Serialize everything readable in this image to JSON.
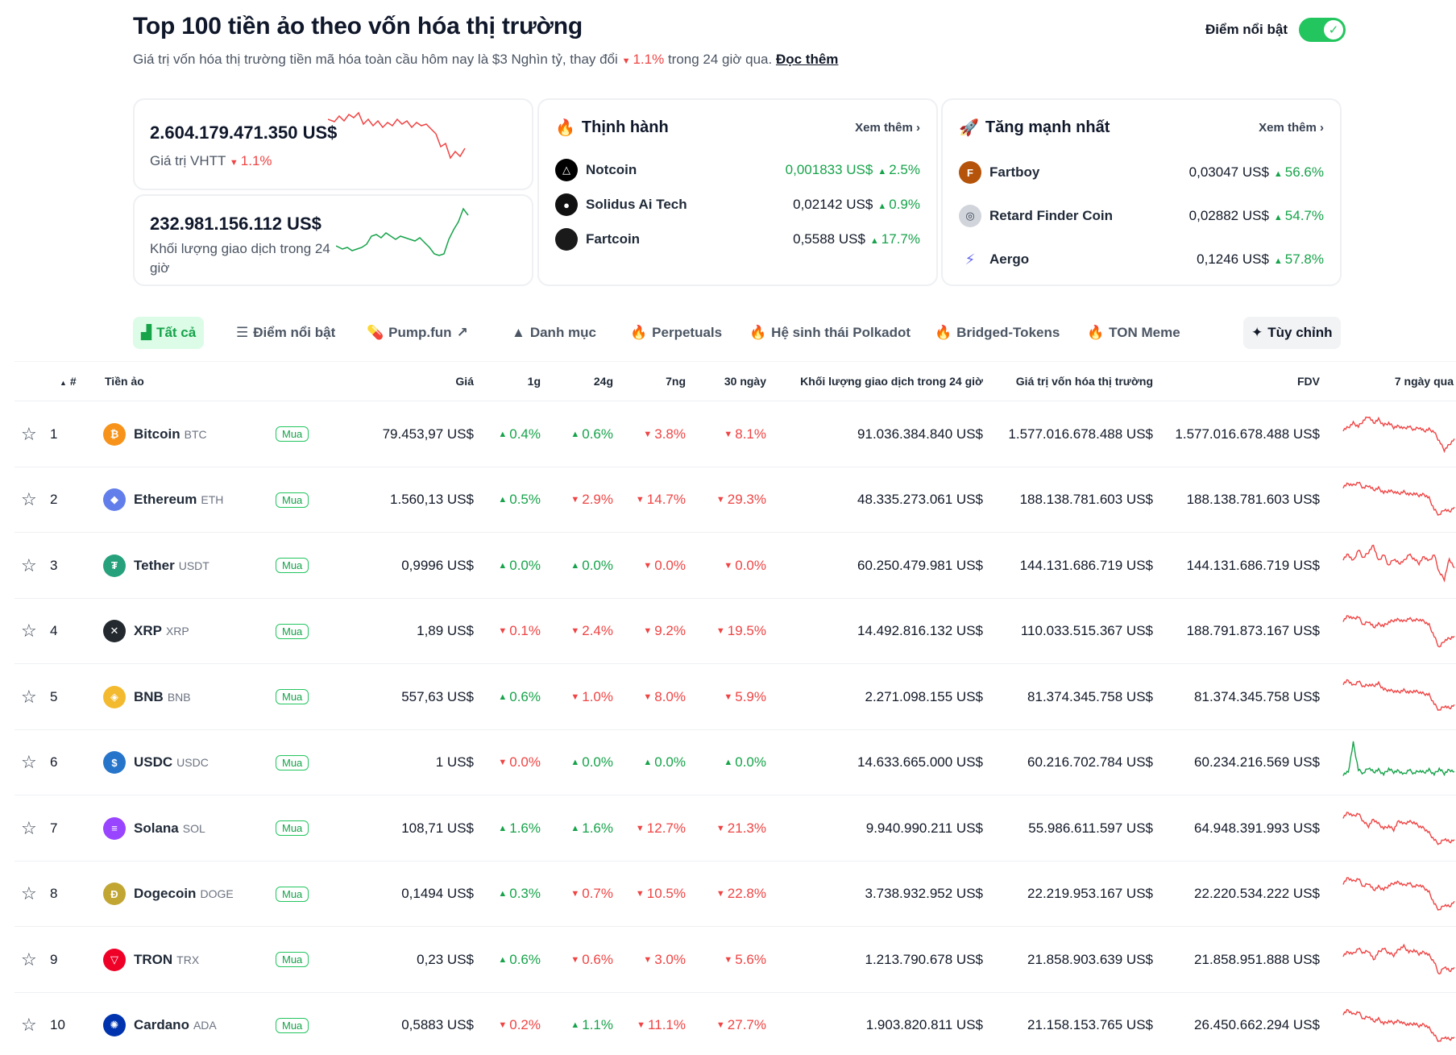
{
  "header": {
    "title": "Top 100 tiền ảo theo vốn hóa thị trường",
    "subtitle_prefix": "Giá trị vốn hóa thị trường tiền mã hóa toàn cầu hôm nay là $3 Nghìn tỷ, thay đổi",
    "subtitle_change": "1.1%",
    "subtitle_suffix": "trong 24 giờ qua.",
    "read_more": "Đọc thêm",
    "highlight_label": "Điểm nổi bật",
    "highlight_on": true
  },
  "stats": {
    "market_cap": {
      "value": "2.604.179.471.350 US$",
      "label": "Giá trị VHTT",
      "change": "1.1%",
      "trend": "down"
    },
    "volume": {
      "value": "232.981.156.112 US$",
      "label": "Khối lượng giao dịch trong 24 giờ",
      "trend": "up"
    }
  },
  "trending": {
    "title": "Thịnh hành",
    "see_more": "Xem thêm",
    "items": [
      {
        "name": "Notcoin",
        "price": "0,001833 US$",
        "change": "2.5%",
        "logo_color": "#000000",
        "icon": "triangle-icon"
      },
      {
        "name": "Solidus Ai Tech",
        "price": "0,02142 US$",
        "change": "0.9%",
        "logo_color": "#111111",
        "icon": "solidus-icon"
      },
      {
        "name": "Fartcoin",
        "price": "0,5588 US$",
        "change": "17.7%",
        "logo_color": "#1a1a1a",
        "icon": "fartcoin-icon"
      }
    ]
  },
  "gainers": {
    "title": "Tăng mạnh nhất",
    "see_more": "Xem thêm",
    "items": [
      {
        "name": "Fartboy",
        "price": "0,03047 US$",
        "change": "56.6%",
        "logo_color": "#b45309",
        "icon": "fartboy-icon"
      },
      {
        "name": "Retard Finder Coin",
        "price": "0,02882 US$",
        "change": "54.7%",
        "logo_color": "#9ca3af",
        "icon": "retard-finder-icon"
      },
      {
        "name": "Aergo",
        "price": "0,1246 US$",
        "change": "57.8%",
        "logo_color": "#6366f1",
        "icon": "aergo-icon"
      }
    ]
  },
  "tabs": [
    {
      "label": "Tất cả",
      "icon": "bar-chart-icon",
      "active": true
    },
    {
      "label": "Điểm nổi bật",
      "icon": "list-icon"
    },
    {
      "label": "Pump.fun",
      "icon": "pill-icon",
      "external": true
    },
    {
      "label": "Danh mục",
      "icon": "shapes-icon"
    },
    {
      "label": "Perpetuals",
      "icon": "fire-icon"
    },
    {
      "label": "Hệ sinh thái Polkadot",
      "icon": "fire-icon"
    },
    {
      "label": "Bridged-Tokens",
      "icon": "fire-icon"
    },
    {
      "label": "TON Meme",
      "icon": "fire-icon"
    }
  ],
  "customize_label": "Tùy chỉnh",
  "table": {
    "columns": {
      "rank": "#",
      "coin": "Tiền ảo",
      "price": "Giá",
      "h1": "1g",
      "h24": "24g",
      "d7": "7ng",
      "d30": "30 ngày",
      "volume": "Khối lượng giao dịch trong 24 giờ",
      "mcap": "Giá trị vốn hóa thị trường",
      "fdv": "FDV",
      "last7": "7 ngày qua"
    },
    "buy_label": "Mua",
    "rows": [
      {
        "rank": "1",
        "name": "Bitcoin",
        "symbol": "BTC",
        "logo_color": "#f7931a",
        "logo_char": "₿",
        "price": "79.453,97 US$",
        "h1": "0.4%",
        "h1_dir": "up",
        "h24": "0.6%",
        "h24_dir": "up",
        "d7": "3.8%",
        "d7_dir": "down",
        "d30": "8.1%",
        "d30_dir": "down",
        "volume": "91.036.384.840 US$",
        "mcap": "1.577.016.678.488 US$",
        "fdv": "1.577.016.678.488 US$",
        "spark_color": "#ef4444",
        "spark": [
          0.55,
          0.6,
          0.7,
          0.62,
          0.75,
          0.85,
          0.7,
          0.78,
          0.65,
          0.7,
          0.6,
          0.63,
          0.58,
          0.62,
          0.55,
          0.6,
          0.52,
          0.56,
          0.5,
          0.3,
          0.1,
          0.22,
          0.35
        ]
      },
      {
        "rank": "2",
        "name": "Ethereum",
        "symbol": "ETH",
        "logo_color": "#627eea",
        "logo_char": "◆",
        "price": "1.560,13 US$",
        "h1": "0.5%",
        "h1_dir": "up",
        "h24": "2.9%",
        "h24_dir": "down",
        "d7": "14.7%",
        "d7_dir": "down",
        "d30": "29.3%",
        "d30_dir": "down",
        "volume": "48.335.273.061 US$",
        "mcap": "188.138.781.603 US$",
        "fdv": "188.138.781.603 US$",
        "spark_color": "#ef4444",
        "spark": [
          0.75,
          0.82,
          0.78,
          0.85,
          0.72,
          0.78,
          0.68,
          0.72,
          0.62,
          0.66,
          0.64,
          0.6,
          0.64,
          0.58,
          0.6,
          0.56,
          0.58,
          0.5,
          0.25,
          0.12,
          0.25,
          0.2,
          0.3
        ]
      },
      {
        "rank": "3",
        "name": "Tether",
        "symbol": "USDT",
        "logo_color": "#26a17b",
        "logo_char": "₮",
        "price": "0,9996 US$",
        "h1": "0.0%",
        "h1_dir": "up",
        "h24": "0.0%",
        "h24_dir": "up",
        "d7": "0.0%",
        "d7_dir": "down",
        "d30": "0.0%",
        "d30_dir": "down",
        "volume": "60.250.479.981 US$",
        "mcap": "144.131.686.719 US$",
        "fdv": "144.131.686.719 US$",
        "spark_color": "#ef4444",
        "spark": [
          0.6,
          0.7,
          0.55,
          0.8,
          0.62,
          0.75,
          0.9,
          0.55,
          0.7,
          0.45,
          0.6,
          0.5,
          0.55,
          0.7,
          0.6,
          0.5,
          0.65,
          0.55,
          0.7,
          0.3,
          0.15,
          0.6,
          0.4
        ]
      },
      {
        "rank": "4",
        "name": "XRP",
        "symbol": "XRP",
        "logo_color": "#23292f",
        "logo_char": "✕",
        "price": "1,89 US$",
        "h1": "0.1%",
        "h1_dir": "down",
        "h24": "2.4%",
        "h24_dir": "down",
        "d7": "9.2%",
        "d7_dir": "down",
        "d30": "19.5%",
        "d30_dir": "down",
        "volume": "14.492.816.132 US$",
        "mcap": "110.033.515.367 US$",
        "fdv": "188.791.873.167 US$",
        "spark_color": "#ef4444",
        "spark": [
          0.7,
          0.8,
          0.74,
          0.78,
          0.6,
          0.68,
          0.55,
          0.62,
          0.58,
          0.66,
          0.7,
          0.72,
          0.68,
          0.74,
          0.7,
          0.72,
          0.68,
          0.6,
          0.35,
          0.1,
          0.25,
          0.3,
          0.35
        ]
      },
      {
        "rank": "5",
        "name": "BNB",
        "symbol": "BNB",
        "logo_color": "#f3ba2f",
        "logo_char": "◈",
        "price": "557,63 US$",
        "h1": "0.6%",
        "h1_dir": "up",
        "h24": "1.0%",
        "h24_dir": "down",
        "d7": "8.0%",
        "d7_dir": "down",
        "d30": "5.9%",
        "d30_dir": "down",
        "volume": "2.271.098.155 US$",
        "mcap": "81.374.345.758 US$",
        "fdv": "81.374.345.758 US$",
        "spark_color": "#ef4444",
        "spark": [
          0.75,
          0.82,
          0.7,
          0.8,
          0.68,
          0.72,
          0.7,
          0.75,
          0.62,
          0.6,
          0.58,
          0.56,
          0.6,
          0.55,
          0.58,
          0.56,
          0.52,
          0.5,
          0.3,
          0.15,
          0.25,
          0.2,
          0.28
        ]
      },
      {
        "rank": "6",
        "name": "USDC",
        "symbol": "USDC",
        "logo_color": "#2775ca",
        "logo_char": "$",
        "price": "1 US$",
        "h1": "0.0%",
        "h1_dir": "down",
        "h24": "0.0%",
        "h24_dir": "up",
        "d7": "0.0%",
        "d7_dir": "up",
        "d30": "0.0%",
        "d30_dir": "up",
        "volume": "14.633.665.000 US$",
        "mcap": "60.216.702.784 US$",
        "fdv": "60.234.216.569 US$",
        "spark_color": "#16a34a",
        "spark": [
          0.2,
          0.25,
          0.9,
          0.3,
          0.22,
          0.35,
          0.25,
          0.3,
          0.2,
          0.32,
          0.25,
          0.28,
          0.2,
          0.3,
          0.22,
          0.28,
          0.24,
          0.3,
          0.2,
          0.32,
          0.22,
          0.3,
          0.26
        ]
      },
      {
        "rank": "7",
        "name": "Solana",
        "symbol": "SOL",
        "logo_color": "#9945ff",
        "logo_char": "≡",
        "price": "108,71 US$",
        "h1": "1.6%",
        "h1_dir": "up",
        "h24": "1.6%",
        "h24_dir": "up",
        "d7": "12.7%",
        "d7_dir": "down",
        "d30": "21.3%",
        "d30_dir": "down",
        "volume": "9.940.990.211 US$",
        "mcap": "55.986.611.597 US$",
        "fdv": "64.948.391.993 US$",
        "spark_color": "#ef4444",
        "spark": [
          0.7,
          0.8,
          0.72,
          0.78,
          0.6,
          0.5,
          0.65,
          0.55,
          0.45,
          0.5,
          0.42,
          0.62,
          0.55,
          0.6,
          0.58,
          0.5,
          0.45,
          0.35,
          0.2,
          0.1,
          0.22,
          0.15,
          0.2
        ]
      },
      {
        "rank": "8",
        "name": "Dogecoin",
        "symbol": "DOGE",
        "logo_color": "#c2a633",
        "logo_char": "Ð",
        "price": "0,1494 US$",
        "h1": "0.3%",
        "h1_dir": "up",
        "h24": "0.7%",
        "h24_dir": "down",
        "d7": "10.5%",
        "d7_dir": "down",
        "d30": "22.8%",
        "d30_dir": "down",
        "volume": "3.738.932.952 US$",
        "mcap": "22.219.953.167 US$",
        "fdv": "22.220.534.222 US$",
        "spark_color": "#ef4444",
        "spark": [
          0.7,
          0.82,
          0.74,
          0.8,
          0.62,
          0.7,
          0.55,
          0.62,
          0.56,
          0.64,
          0.7,
          0.72,
          0.65,
          0.7,
          0.62,
          0.66,
          0.6,
          0.5,
          0.25,
          0.1,
          0.22,
          0.18,
          0.3
        ]
      },
      {
        "rank": "9",
        "name": "TRON",
        "symbol": "TRX",
        "logo_color": "#ef0027",
        "logo_char": "▽",
        "price": "0,23 US$",
        "h1": "0.6%",
        "h1_dir": "up",
        "h24": "0.6%",
        "h24_dir": "down",
        "d7": "3.0%",
        "d7_dir": "down",
        "d30": "5.6%",
        "d30_dir": "down",
        "volume": "1.213.790.678 US$",
        "mcap": "21.858.903.639 US$",
        "fdv": "21.858.951.888 US$",
        "spark_color": "#ef4444",
        "spark": [
          0.55,
          0.62,
          0.58,
          0.7,
          0.6,
          0.65,
          0.45,
          0.62,
          0.7,
          0.6,
          0.55,
          0.68,
          0.75,
          0.62,
          0.66,
          0.58,
          0.62,
          0.55,
          0.4,
          0.12,
          0.3,
          0.2,
          0.28
        ]
      },
      {
        "rank": "10",
        "name": "Cardano",
        "symbol": "ADA",
        "logo_color": "#0033ad",
        "logo_char": "✺",
        "price": "0,5883 US$",
        "h1": "0.2%",
        "h1_dir": "down",
        "h24": "1.1%",
        "h24_dir": "up",
        "d7": "11.1%",
        "d7_dir": "down",
        "d30": "27.7%",
        "d30_dir": "down",
        "volume": "1.903.820.811 US$",
        "mcap": "21.158.153.765 US$",
        "fdv": "26.450.662.294 US$",
        "spark_color": "#ef4444",
        "spark": [
          0.72,
          0.8,
          0.7,
          0.76,
          0.6,
          0.66,
          0.55,
          0.6,
          0.5,
          0.55,
          0.52,
          0.56,
          0.5,
          0.48,
          0.5,
          0.45,
          0.48,
          0.4,
          0.25,
          0.1,
          0.2,
          0.15,
          0.2
        ]
      }
    ]
  },
  "colors": {
    "green": "#16a34a",
    "red": "#ef4444",
    "border": "#eef0f3"
  }
}
